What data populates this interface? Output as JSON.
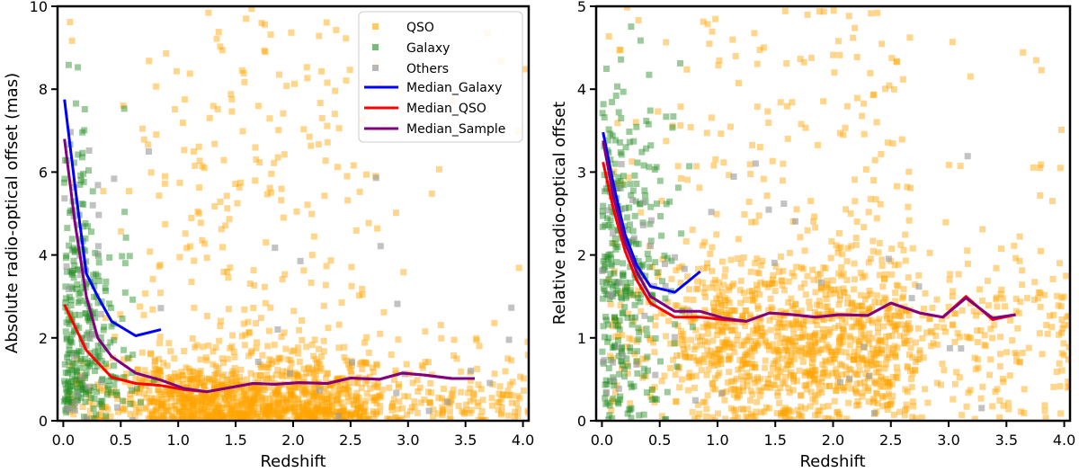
{
  "chart_data": [
    {
      "type": "scatter",
      "id": "left",
      "xlabel": "Redshift",
      "ylabel": "Absolute radio-optical offset (mas)",
      "xlim": [
        -0.05,
        4.05
      ],
      "ylim": [
        0,
        10
      ],
      "xticks": [
        "0.0",
        "0.5",
        "1.0",
        "1.5",
        "2.0",
        "2.5",
        "3.0",
        "3.5",
        "4.0"
      ],
      "yticks": [
        "0",
        "2",
        "4",
        "6",
        "8",
        "10"
      ],
      "legend": {
        "position": "top-right",
        "entries": [
          "QSO",
          "Galaxy",
          "Others",
          "Median_Galaxy",
          "Median_QSO",
          "Median_Sample"
        ]
      },
      "scatter_series": [
        {
          "name": "QSO",
          "color": "#FFA500",
          "alpha": 0.45,
          "count": 1500,
          "x_range": [
            0.05,
            4.05
          ],
          "y_range": [
            0,
            10
          ],
          "note": "dense band 0.8-2.6 below 1.5 mas"
        },
        {
          "name": "Galaxy",
          "color": "#228B22",
          "alpha": 0.45,
          "count": 300,
          "x_range": [
            0,
            1.0
          ],
          "y_range": [
            0,
            10
          ]
        },
        {
          "name": "Others",
          "color": "#999999",
          "alpha": 0.6,
          "count": 55,
          "x_range": [
            0,
            3.9
          ],
          "y_range": [
            0,
            8
          ]
        }
      ],
      "median_series": [
        {
          "name": "Median_Galaxy",
          "color": "#0000FF",
          "x": [
            0.01,
            0.1,
            0.2,
            0.3,
            0.42,
            0.63,
            0.85
          ],
          "y": [
            7.75,
            5.7,
            3.55,
            3.0,
            2.4,
            2.05,
            2.2
          ]
        },
        {
          "name": "Median_QSO",
          "color": "#FF0000",
          "x": [
            0.01,
            0.2,
            0.42,
            0.63,
            0.85,
            1.05,
            1.25,
            1.45,
            1.65,
            1.85,
            2.05,
            2.3,
            2.5,
            2.75,
            2.95,
            3.15,
            3.38,
            3.58
          ],
          "y": [
            2.8,
            1.7,
            1.05,
            0.9,
            0.85,
            0.75,
            0.7,
            0.8,
            0.9,
            0.88,
            0.92,
            0.9,
            1.03,
            1.0,
            1.15,
            1.1,
            1.02,
            1.02
          ]
        },
        {
          "name": "Median_Sample",
          "color": "#800080",
          "x": [
            0.01,
            0.1,
            0.2,
            0.3,
            0.42,
            0.63,
            0.85,
            1.05,
            1.25,
            1.45,
            1.65,
            1.85,
            2.05,
            2.3,
            2.5,
            2.75,
            2.95,
            3.15,
            3.38,
            3.58
          ],
          "y": [
            6.8,
            4.8,
            3.0,
            2.0,
            1.55,
            1.15,
            0.98,
            0.78,
            0.7,
            0.8,
            0.9,
            0.88,
            0.92,
            0.9,
            1.03,
            1.0,
            1.15,
            1.1,
            1.02,
            1.02
          ]
        }
      ]
    },
    {
      "type": "scatter",
      "id": "right",
      "xlabel": "Redshift",
      "ylabel": "Relative radio-optical offset",
      "xlim": [
        -0.05,
        4.05
      ],
      "ylim": [
        0,
        5
      ],
      "xticks": [
        "0.0",
        "0.5",
        "1.0",
        "1.5",
        "2.0",
        "2.5",
        "3.0",
        "3.5",
        "4.0"
      ],
      "yticks": [
        "0",
        "1",
        "2",
        "3",
        "4",
        "5"
      ],
      "scatter_series": [
        {
          "name": "QSO",
          "color": "#FFA500",
          "alpha": 0.45,
          "count": 1500,
          "x_range": [
            0.05,
            4.05
          ],
          "y_range": [
            0,
            5
          ],
          "note": "dense band 0.5-2.5 around 0.6-1.6"
        },
        {
          "name": "Galaxy",
          "color": "#228B22",
          "alpha": 0.45,
          "count": 320,
          "x_range": [
            0,
            0.9
          ],
          "y_range": [
            0,
            5
          ]
        },
        {
          "name": "Others",
          "color": "#999999",
          "alpha": 0.6,
          "count": 55,
          "x_range": [
            0,
            3.9
          ],
          "y_range": [
            0,
            4.5
          ]
        }
      ],
      "median_series": [
        {
          "name": "Median_Galaxy",
          "color": "#0000FF",
          "x": [
            0.01,
            0.1,
            0.2,
            0.3,
            0.42,
            0.63,
            0.85
          ],
          "y": [
            3.48,
            2.85,
            2.25,
            1.88,
            1.62,
            1.55,
            1.8
          ]
        },
        {
          "name": "Median_QSO",
          "color": "#FF0000",
          "x": [
            0.01,
            0.1,
            0.2,
            0.3,
            0.42,
            0.63,
            0.85,
            1.05,
            1.25,
            1.45,
            1.65,
            1.85,
            2.05,
            2.3,
            2.5,
            2.75,
            2.95,
            3.15,
            3.38,
            3.58
          ],
          "y": [
            3.12,
            2.55,
            2.05,
            1.7,
            1.42,
            1.25,
            1.25,
            1.22,
            1.2,
            1.3,
            1.28,
            1.25,
            1.28,
            1.27,
            1.42,
            1.3,
            1.25,
            1.5,
            1.22,
            1.28
          ]
        },
        {
          "name": "Median_Sample",
          "color": "#800080",
          "x": [
            0.01,
            0.1,
            0.2,
            0.3,
            0.42,
            0.63,
            0.85,
            1.05,
            1.25,
            1.45,
            1.65,
            1.85,
            2.05,
            2.3,
            2.5,
            2.75,
            2.95,
            3.15,
            3.38,
            3.58
          ],
          "y": [
            3.38,
            2.7,
            2.15,
            1.8,
            1.5,
            1.32,
            1.32,
            1.24,
            1.2,
            1.3,
            1.28,
            1.25,
            1.28,
            1.27,
            1.42,
            1.3,
            1.25,
            1.48,
            1.24,
            1.28
          ]
        }
      ]
    }
  ]
}
